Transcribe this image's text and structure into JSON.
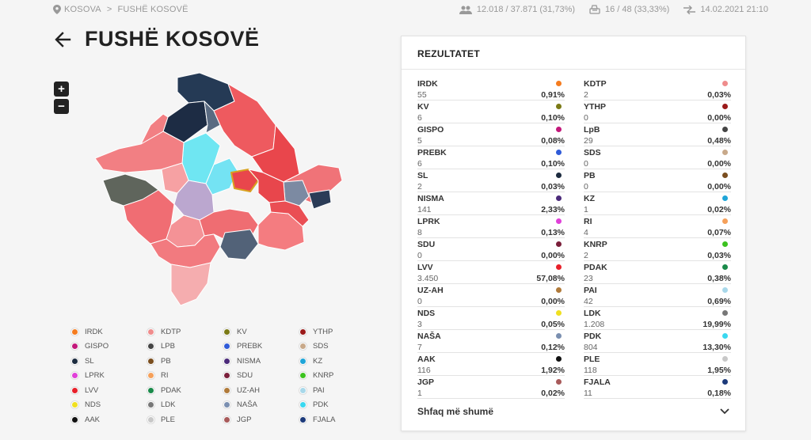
{
  "breadcrumb": {
    "root": "KOSOVA",
    "separator": ">",
    "current": "FUSHË KOSOVË"
  },
  "stats": {
    "voters": "12.018 / 37.871 (31,73%)",
    "stations": "16 / 48 (33,33%)",
    "updated": "14.02.2021 21:10"
  },
  "page": {
    "title": "FUSHË KOSOVË"
  },
  "zoom": {
    "in": "+",
    "out": "−"
  },
  "panel": {
    "title": "REZULTATET",
    "more": "Shfaq më shumë"
  },
  "results": [
    {
      "name": "IRDK",
      "votes": "55",
      "pct": "0,91%",
      "color": "#f57c1f"
    },
    {
      "name": "KDTP",
      "votes": "2",
      "pct": "0,03%",
      "color": "#ef8c8c"
    },
    {
      "name": "KV",
      "votes": "6",
      "pct": "0,10%",
      "color": "#7b7a16"
    },
    {
      "name": "YTHP",
      "votes": "0",
      "pct": "0,00%",
      "color": "#9b1a1a"
    },
    {
      "name": "GISPO",
      "votes": "5",
      "pct": "0,08%",
      "color": "#c2187a"
    },
    {
      "name": "LpB",
      "votes": "29",
      "pct": "0,48%",
      "color": "#444444"
    },
    {
      "name": "PREBK",
      "votes": "6",
      "pct": "0,10%",
      "color": "#2f5bd8"
    },
    {
      "name": "SDS",
      "votes": "0",
      "pct": "0,00%",
      "color": "#c8a98a"
    },
    {
      "name": "SL",
      "votes": "2",
      "pct": "0,03%",
      "color": "#1c2b3f"
    },
    {
      "name": "PB",
      "votes": "0",
      "pct": "0,00%",
      "color": "#7a4e1f"
    },
    {
      "name": "NISMA",
      "votes": "141",
      "pct": "2,33%",
      "color": "#4b2a7a"
    },
    {
      "name": "KZ",
      "votes": "1",
      "pct": "0,02%",
      "color": "#1fa5d8"
    },
    {
      "name": "LPRK",
      "votes": "8",
      "pct": "0,13%",
      "color": "#e040d8"
    },
    {
      "name": "RI",
      "votes": "4",
      "pct": "0,07%",
      "color": "#f5a05a"
    },
    {
      "name": "SDU",
      "votes": "0",
      "pct": "0,00%",
      "color": "#7a1f3a"
    },
    {
      "name": "KNRP",
      "votes": "2",
      "pct": "0,03%",
      "color": "#3cc21f"
    },
    {
      "name": "LVV",
      "votes": "3.450",
      "pct": "57,08%",
      "color": "#e8202a"
    },
    {
      "name": "PDAK",
      "votes": "23",
      "pct": "0,38%",
      "color": "#1a8a4a"
    },
    {
      "name": "UZ-AH",
      "votes": "0",
      "pct": "0,00%",
      "color": "#b07a3a"
    },
    {
      "name": "PAI",
      "votes": "42",
      "pct": "0,69%",
      "color": "#a8d8ea"
    },
    {
      "name": "NDS",
      "votes": "3",
      "pct": "0,05%",
      "color": "#f0e020"
    },
    {
      "name": "LDK",
      "votes": "1.208",
      "pct": "19,99%",
      "color": "#777777"
    },
    {
      "name": "NAŠA",
      "votes": "7",
      "pct": "0,12%",
      "color": "#7a8fb0"
    },
    {
      "name": "PDK",
      "votes": "804",
      "pct": "13,30%",
      "color": "#3ad8f0"
    },
    {
      "name": "AAK",
      "votes": "116",
      "pct": "1,92%",
      "color": "#111111"
    },
    {
      "name": "PLE",
      "votes": "118",
      "pct": "1,95%",
      "color": "#c8c8c8"
    },
    {
      "name": "JGP",
      "votes": "1",
      "pct": "0,02%",
      "color": "#a85a5a"
    },
    {
      "name": "FJALA",
      "votes": "11",
      "pct": "0,18%",
      "color": "#1c3a7a"
    }
  ],
  "legend": [
    {
      "label": "IRDK",
      "color": "#f57c1f"
    },
    {
      "label": "KDTP",
      "color": "#ef8c8c"
    },
    {
      "label": "KV",
      "color": "#7b7a16"
    },
    {
      "label": "YTHP",
      "color": "#9b1a1a"
    },
    {
      "label": "GISPO",
      "color": "#c2187a"
    },
    {
      "label": "LPB",
      "color": "#444444"
    },
    {
      "label": "PREBK",
      "color": "#2f5bd8"
    },
    {
      "label": "SDS",
      "color": "#c8a98a"
    },
    {
      "label": "SL",
      "color": "#1c2b3f"
    },
    {
      "label": "PB",
      "color": "#7a4e1f"
    },
    {
      "label": "NISMA",
      "color": "#4b2a7a"
    },
    {
      "label": "KZ",
      "color": "#1fa5d8"
    },
    {
      "label": "LPRK",
      "color": "#e040d8"
    },
    {
      "label": "RI",
      "color": "#f5a05a"
    },
    {
      "label": "SDU",
      "color": "#7a1f3a"
    },
    {
      "label": "KNRP",
      "color": "#3cc21f"
    },
    {
      "label": "LVV",
      "color": "#e8202a"
    },
    {
      "label": "PDAK",
      "color": "#1a8a4a"
    },
    {
      "label": "UZ-AH",
      "color": "#b07a3a"
    },
    {
      "label": "PAI",
      "color": "#a8d8ea"
    },
    {
      "label": "NDS",
      "color": "#f0e020"
    },
    {
      "label": "LDK",
      "color": "#777777"
    },
    {
      "label": "NAŠA",
      "color": "#7a8fb0"
    },
    {
      "label": "PDK",
      "color": "#3ad8f0"
    },
    {
      "label": "AAK",
      "color": "#111111"
    },
    {
      "label": "PLE",
      "color": "#c8c8c8"
    },
    {
      "label": "JGP",
      "color": "#a85a5a"
    },
    {
      "label": "FJALA",
      "color": "#1c3a7a"
    }
  ]
}
